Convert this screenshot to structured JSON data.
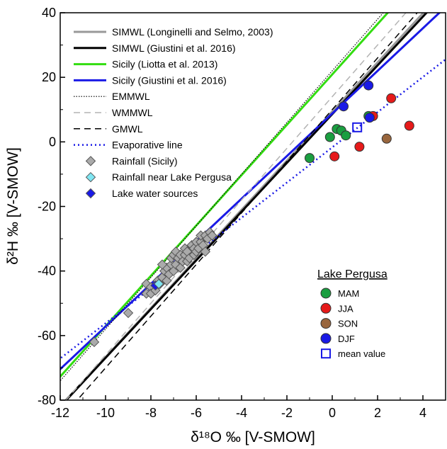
{
  "chart_data": {
    "type": "scatter",
    "xlabel": "δ¹⁸O ‰ [V-SMOW]",
    "ylabel": "δ²H ‰ [V-SMOW]",
    "xlim": [
      -12,
      5
    ],
    "ylim": [
      -80,
      40
    ],
    "x_ticks": [
      -12,
      -10,
      -8,
      -6,
      -4,
      -2,
      0,
      2,
      4
    ],
    "y_ticks": [
      -80,
      -60,
      -40,
      -20,
      0,
      20,
      40
    ],
    "grid": false,
    "legend_position": "top-left",
    "lines": [
      {
        "name": "SIMWL (Longinelli and Selmo, 2003)",
        "slope": 7.61,
        "intercept": 9.4,
        "color": "#999999",
        "dash": "",
        "width": 3
      },
      {
        "name": "SIMWL (Giustini et al. 2016)",
        "slope": 7.55,
        "intercept": 8.6,
        "color": "#000000",
        "dash": "",
        "width": 3
      },
      {
        "name": "Sicily (Liotta et al. 2013)",
        "slope": 7.8,
        "intercept": 20.9,
        "color": "#33dd11",
        "dash": "",
        "width": 3
      },
      {
        "name": "Sicily (Giustini et al. 2016)",
        "slope": 6.6,
        "intercept": 8.8,
        "color": "#1a1ae6",
        "dash": "",
        "width": 3
      },
      {
        "name": "EMMWL",
        "slope": 8,
        "intercept": 22,
        "color": "#000000",
        "dash": "1.5,2",
        "width": 1.2
      },
      {
        "name": "WMMWL",
        "slope": 8,
        "intercept": 14,
        "color": "#b3b3b3",
        "dash": "9,6",
        "width": 1.5
      },
      {
        "name": "GMWL",
        "slope": 8,
        "intercept": 10,
        "color": "#000000",
        "dash": "9,6",
        "width": 1.5
      },
      {
        "name": "Evaporative line",
        "slope": 5.45,
        "intercept": -1.7,
        "color": "#1a1ae6",
        "dash": "2,4",
        "width": 2.5
      }
    ],
    "legend_points": [
      {
        "name": "Rainfall (Sicily)",
        "shape": "diamond",
        "color": "#aaaaaa"
      },
      {
        "name": "Rainfall near Lake Pergusa",
        "shape": "diamond",
        "color": "#80e6f2"
      },
      {
        "name": "Lake water sources",
        "shape": "diamond",
        "color": "#1a1ae6"
      }
    ],
    "rainfall_sicily": [
      [
        -10.5,
        -62
      ],
      [
        -9,
        -53
      ],
      [
        -8.2,
        -47
      ],
      [
        -8.2,
        -44
      ],
      [
        -8,
        -45
      ],
      [
        -8,
        -47
      ],
      [
        -7.8,
        -46
      ],
      [
        -7.7,
        -43
      ],
      [
        -7.6,
        -44
      ],
      [
        -7.5,
        -42
      ],
      [
        -7.4,
        -40
      ],
      [
        -7.3,
        -43
      ],
      [
        -7.3,
        -39
      ],
      [
        -7.2,
        -41
      ],
      [
        -7.1,
        -38
      ],
      [
        -7.1,
        -36
      ],
      [
        -7,
        -40
      ],
      [
        -7,
        -35
      ],
      [
        -6.9,
        -38
      ],
      [
        -6.9,
        -34
      ],
      [
        -6.8,
        -36
      ],
      [
        -6.7,
        -39
      ],
      [
        -6.7,
        -35
      ],
      [
        -6.6,
        -37
      ],
      [
        -6.5,
        -35
      ],
      [
        -6.5,
        -33
      ],
      [
        -6.4,
        -37
      ],
      [
        -6.4,
        -34
      ],
      [
        -6.3,
        -36
      ],
      [
        -6.2,
        -32
      ],
      [
        -6.1,
        -35
      ],
      [
        -6.1,
        -33
      ],
      [
        -6,
        -34
      ],
      [
        -6,
        -31
      ],
      [
        -5.9,
        -33
      ],
      [
        -5.8,
        -31
      ],
      [
        -5.8,
        -29
      ],
      [
        -5.7,
        -32
      ],
      [
        -5.6,
        -29
      ],
      [
        -5.6,
        -34
      ],
      [
        -5.5,
        -30
      ],
      [
        -5.4,
        -28
      ],
      [
        -5.3,
        -29
      ],
      [
        -7.5,
        -38
      ]
    ],
    "rainfall_pergusa": [
      [
        -7.65,
        -44
      ]
    ],
    "lake_water_sources": [
      [
        -7.8,
        -44.5
      ]
    ],
    "legend_title": "Lake Pergusa",
    "season_series": [
      {
        "name": "MAM",
        "color": "#1a9e40",
        "points": [
          [
            -1,
            -5
          ],
          [
            -0.1,
            1.5
          ],
          [
            0.2,
            4
          ],
          [
            0.4,
            3.5
          ],
          [
            0.6,
            2
          ],
          [
            1.6,
            8
          ]
        ]
      },
      {
        "name": "JJA",
        "color": "#e61a1a",
        "points": [
          [
            0.1,
            -4.5
          ],
          [
            1.2,
            -1.5
          ],
          [
            1.8,
            8
          ],
          [
            2.6,
            13.5
          ],
          [
            3.4,
            5
          ]
        ]
      },
      {
        "name": "SON",
        "color": "#99663d",
        "points": [
          [
            2.4,
            1
          ]
        ]
      },
      {
        "name": "DJF",
        "color": "#1a1ae6",
        "points": [
          [
            0.5,
            11
          ],
          [
            1.6,
            17.5
          ],
          [
            1.65,
            7.5
          ]
        ]
      }
    ],
    "mean_value": {
      "name": "mean value",
      "point": [
        1.1,
        4.5
      ],
      "color": "#1a1ae6"
    }
  }
}
